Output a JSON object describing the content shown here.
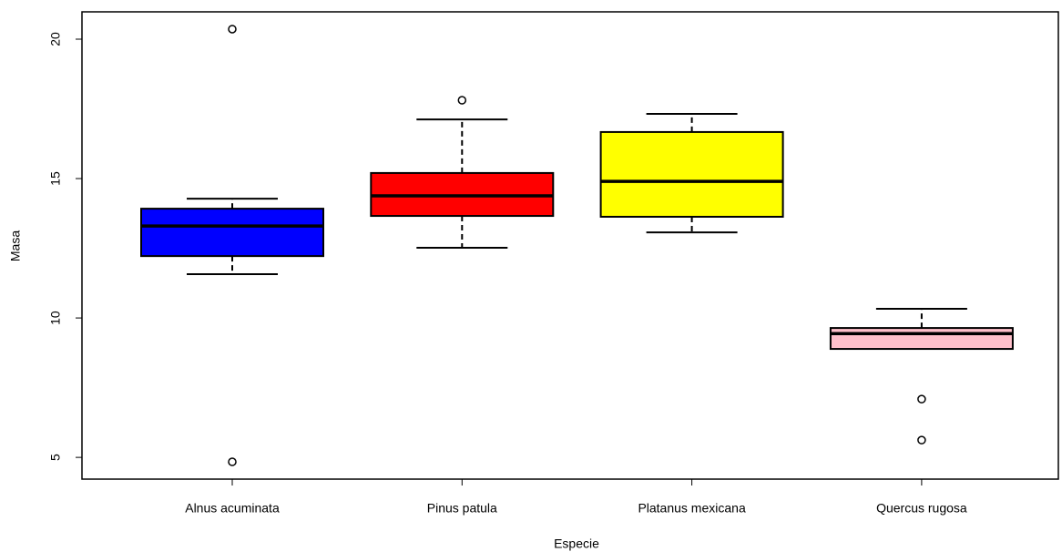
{
  "chart_data": {
    "type": "box",
    "x_label": "Especie",
    "y_label": "Masa",
    "categories": [
      "Alnus acuminata",
      "Pinus patula",
      "Platanus mexicana",
      "Quercus rugosa"
    ],
    "boxes": [
      {
        "color": "#0000ff",
        "whislo": 11.57,
        "q1": 12.22,
        "med": 13.3,
        "q3": 13.92,
        "whishi": 14.28,
        "outliers": [
          20.36,
          4.84
        ]
      },
      {
        "color": "#ff0000",
        "whislo": 12.52,
        "q1": 13.66,
        "med": 14.38,
        "q3": 15.2,
        "whishi": 17.12,
        "outliers": [
          17.81
        ]
      },
      {
        "color": "#ffff00",
        "whislo": 13.07,
        "q1": 13.63,
        "med": 14.9,
        "q3": 16.67,
        "whishi": 17.32,
        "outliers": []
      },
      {
        "color": "#ffc0cb",
        "whislo": 8.89,
        "q1": 8.89,
        "med": 9.44,
        "q3": 9.64,
        "whishi": 10.33,
        "outliers": [
          7.09,
          5.62
        ]
      }
    ],
    "ylim": [
      4.22,
      20.98
    ],
    "yticks": [
      5,
      10,
      15,
      20
    ]
  }
}
